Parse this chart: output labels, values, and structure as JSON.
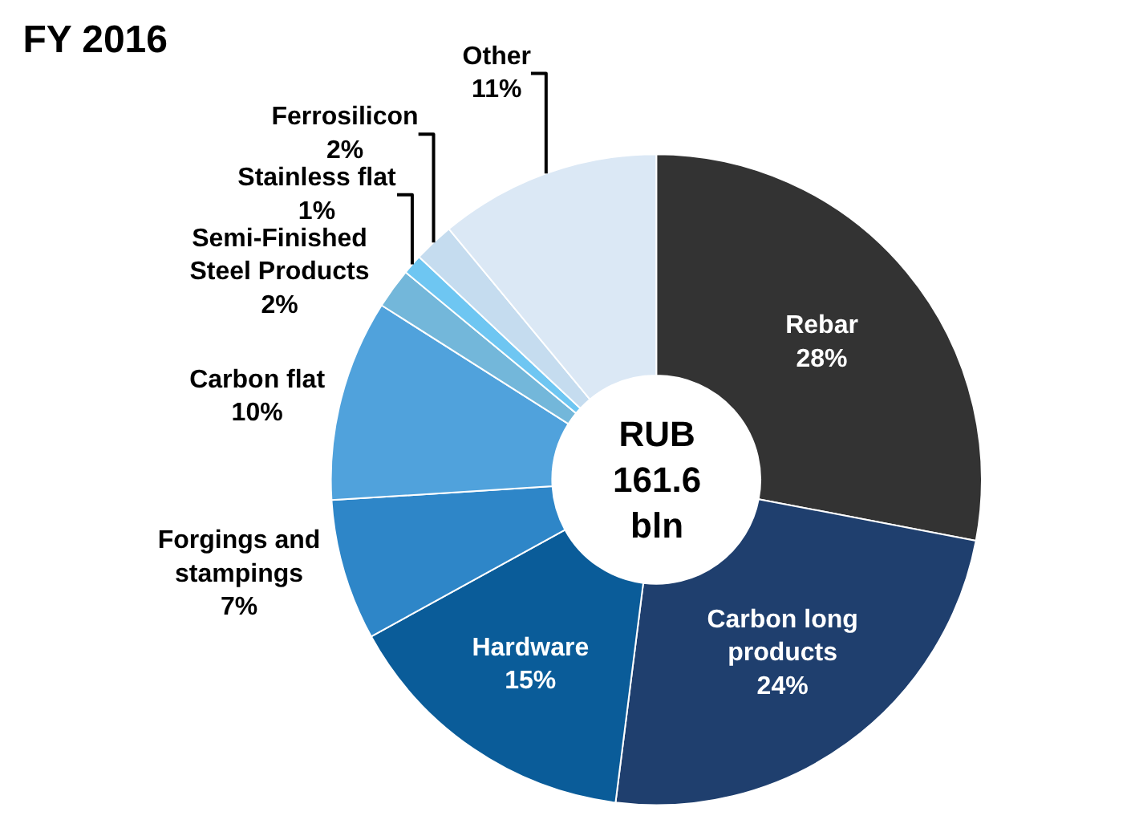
{
  "chart_data": {
    "type": "donut",
    "title": "FY 2016",
    "categories": [
      "Rebar",
      "Carbon long\nproducts",
      "Hardware",
      "Forgings and\nstampings",
      "Carbon flat",
      "Semi-Finished\nSteel Products",
      "Stainless flat",
      "Ferrosilicon",
      "Other"
    ],
    "values": [
      28,
      24,
      15,
      7,
      10,
      2,
      1,
      2,
      11
    ],
    "value_labels": [
      "28%",
      "24%",
      "15%",
      "7%",
      "10%",
      "2%",
      "1%",
      "2%",
      "11%"
    ],
    "colors": [
      "#333333",
      "#1f3f6e",
      "#0a5c99",
      "#2e86c8",
      "#50a2dc",
      "#73b7da",
      "#6ec6f2",
      "#c5dcef",
      "#dbe8f5"
    ],
    "annotations": [
      "RUB\n161.6\nbln"
    ],
    "legend": false
  }
}
